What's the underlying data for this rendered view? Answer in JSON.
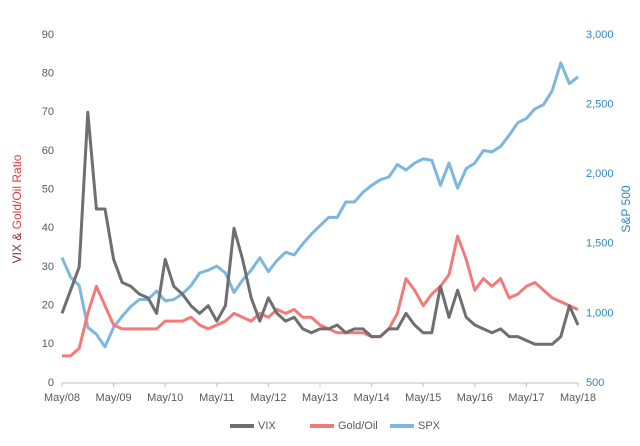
{
  "chart_data": {
    "type": "line",
    "ylabel": [
      "VIX &",
      "Gold/Oil Ratio"
    ],
    "y2label": "S&P 500",
    "categories": [
      "May/08",
      null,
      null,
      null,
      null,
      null,
      "May/09",
      null,
      null,
      null,
      null,
      null,
      "May/10",
      null,
      null,
      null,
      null,
      null,
      "May/11",
      null,
      null,
      null,
      null,
      null,
      "May/12",
      null,
      null,
      null,
      null,
      null,
      "May/13",
      null,
      null,
      null,
      null,
      null,
      "May/14",
      null,
      null,
      null,
      null,
      null,
      "May/15",
      null,
      null,
      null,
      null,
      null,
      "May/16",
      null,
      null,
      null,
      null,
      null,
      "May/17",
      null,
      null,
      null,
      null,
      null,
      "May/18"
    ],
    "ylim": [
      0,
      90
    ],
    "yticks": [
      0,
      10,
      20,
      30,
      40,
      50,
      60,
      70,
      80,
      90
    ],
    "y2lim": [
      500,
      3000
    ],
    "y2ticks": [
      500,
      {
        "value": 1000,
        "label": "1,000"
      },
      {
        "value": 1500,
        "label": "1,500"
      },
      {
        "value": 2000,
        "label": "2,000"
      },
      {
        "value": 2500,
        "label": "2,500"
      },
      {
        "value": 3000,
        "label": "3,000"
      }
    ],
    "series": [
      {
        "name": "VIX",
        "color": "#6f6f6f",
        "values": [
          18,
          24,
          30,
          70,
          45,
          45,
          32,
          26,
          25,
          23,
          22,
          18,
          32,
          25,
          23,
          20,
          18,
          20,
          16,
          20,
          40,
          32,
          22,
          16,
          22,
          18,
          16,
          17,
          14,
          13,
          14,
          14,
          15,
          13,
          14,
          14,
          12,
          12,
          14,
          14,
          18,
          15,
          13,
          13,
          25,
          17,
          24,
          17,
          15,
          14,
          13,
          14,
          12,
          12,
          11,
          10,
          10,
          10,
          12,
          20,
          15
        ]
      },
      {
        "name": "Gold/Oil",
        "color": "#f47a7a",
        "values": [
          7,
          7,
          9,
          18,
          25,
          20,
          15,
          14,
          14,
          14,
          14,
          14,
          16,
          16,
          16,
          17,
          15,
          14,
          15,
          16,
          18,
          17,
          16,
          18,
          17,
          19,
          18,
          19,
          17,
          17,
          15,
          14,
          13,
          13,
          13,
          13,
          12,
          12,
          14,
          18,
          27,
          24,
          20,
          23,
          25,
          28,
          38,
          32,
          24,
          27,
          25,
          27,
          22,
          23,
          25,
          26,
          24,
          22,
          21,
          20,
          19
        ]
      },
      {
        "name": "SPX",
        "color": "#7db7e0",
        "axis": "y2",
        "values": [
          1400,
          1260,
          1200,
          900,
          850,
          760,
          900,
          980,
          1050,
          1100,
          1100,
          1160,
          1090,
          1100,
          1140,
          1200,
          1290,
          1310,
          1340,
          1290,
          1150,
          1240,
          1310,
          1400,
          1300,
          1380,
          1440,
          1420,
          1500,
          1570,
          1630,
          1690,
          1690,
          1800,
          1800,
          1870,
          1920,
          1960,
          1980,
          2070,
          2030,
          2080,
          2110,
          2100,
          1920,
          2080,
          1900,
          2040,
          2080,
          2170,
          2160,
          2200,
          2280,
          2370,
          2400,
          2470,
          2500,
          2600,
          2800,
          2650,
          2700
        ]
      }
    ]
  }
}
